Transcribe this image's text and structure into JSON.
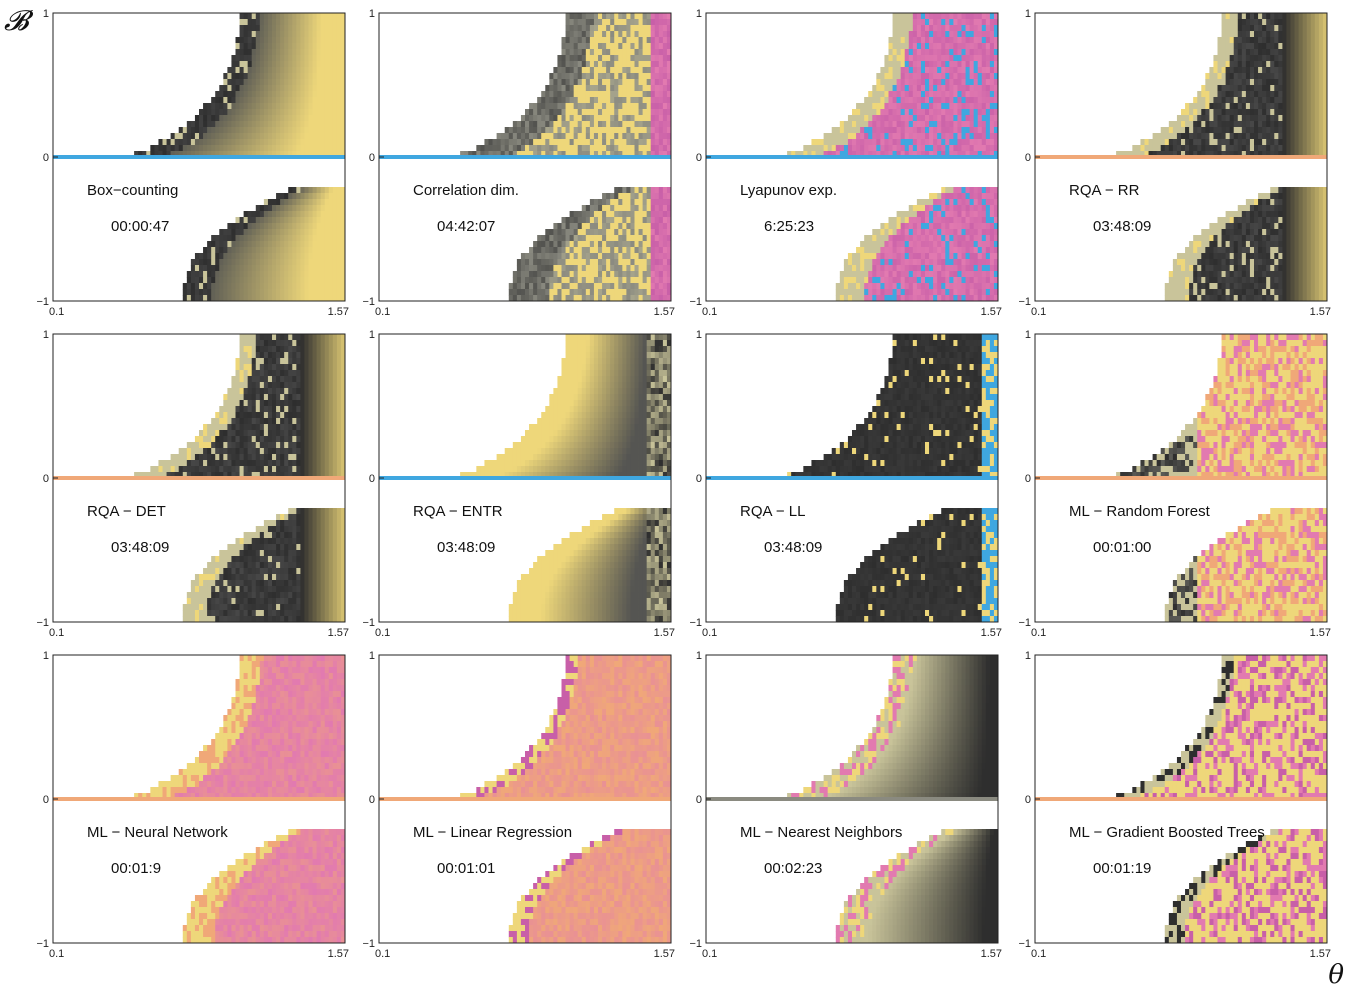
{
  "figure": {
    "y_axis_label": "𝓑",
    "x_axis_label": "θ"
  },
  "palette": {
    "white": "#ffffff",
    "dark": "#2e2e2e",
    "gray": "#8a8a80",
    "khaki": "#c9c49a",
    "yellow": "#eed77a",
    "orange": "#f0a878",
    "pink": "#e27ab0",
    "magenta": "#c85fa8",
    "blue": "#3fa7e0"
  },
  "chart_data": [
    {
      "type": "heatmap",
      "title": "Box−counting",
      "time": "00:00:47",
      "scheme": "yellow-dark",
      "x_tick_labels": [
        "0.1",
        "1.57"
      ],
      "y_tick_labels": [
        "1",
        "0",
        "−1"
      ],
      "xlim": [
        0.1,
        1.57
      ],
      "ylim": [
        -1,
        1
      ],
      "grid": false
    },
    {
      "type": "heatmap",
      "title": "Correlation dim.",
      "time": "04:42:07",
      "scheme": "corr",
      "x_tick_labels": [
        "0.1",
        "1.57"
      ],
      "y_tick_labels": [
        "1",
        "0",
        "−1"
      ],
      "xlim": [
        0.1,
        1.57
      ],
      "ylim": [
        -1,
        1
      ],
      "grid": false
    },
    {
      "type": "heatmap",
      "title": "Lyapunov exp.",
      "time": "6:25:23",
      "scheme": "lyap",
      "x_tick_labels": [
        "0.1",
        "1.57"
      ],
      "y_tick_labels": [
        "1",
        "0",
        "−1"
      ],
      "xlim": [
        0.1,
        1.57
      ],
      "ylim": [
        -1,
        1
      ],
      "grid": false
    },
    {
      "type": "heatmap",
      "title": "RQA − RR",
      "time": "03:48:09",
      "scheme": "rqa",
      "x_tick_labels": [
        "0.1",
        "1.57"
      ],
      "y_tick_labels": [
        "1",
        "0",
        "−1"
      ],
      "xlim": [
        0.1,
        1.57
      ],
      "ylim": [
        -1,
        1
      ],
      "grid": false
    },
    {
      "type": "heatmap",
      "title": "RQA − DET",
      "time": "03:48:09",
      "scheme": "rqa",
      "x_tick_labels": [
        "0.1",
        "1.57"
      ],
      "y_tick_labels": [
        "1",
        "0",
        "−1"
      ],
      "xlim": [
        0.1,
        1.57
      ],
      "ylim": [
        -1,
        1
      ],
      "grid": false
    },
    {
      "type": "heatmap",
      "title": "RQA − ENTR",
      "time": "03:48:09",
      "scheme": "entr",
      "x_tick_labels": [
        "0.1",
        "1.57"
      ],
      "y_tick_labels": [
        "1",
        "0",
        "−1"
      ],
      "xlim": [
        0.1,
        1.57
      ],
      "ylim": [
        -1,
        1
      ],
      "grid": false
    },
    {
      "type": "heatmap",
      "title": "RQA − LL",
      "time": "03:48:09",
      "scheme": "ll",
      "x_tick_labels": [
        "0.1",
        "1.57"
      ],
      "y_tick_labels": [
        "1",
        "0",
        "−1"
      ],
      "xlim": [
        0.1,
        1.57
      ],
      "ylim": [
        -1,
        1
      ],
      "grid": false
    },
    {
      "type": "heatmap",
      "title": "ML − Random Forest",
      "time": "00:01:00",
      "scheme": "rf",
      "x_tick_labels": [
        "0.1",
        "1.57"
      ],
      "y_tick_labels": [
        "1",
        "0",
        "−1"
      ],
      "xlim": [
        0.1,
        1.57
      ],
      "ylim": [
        -1,
        1
      ],
      "grid": false
    },
    {
      "type": "heatmap",
      "title": "ML − Neural Network",
      "time": "00:01:9",
      "scheme": "nn",
      "x_tick_labels": [
        "0.1",
        "1.57"
      ],
      "y_tick_labels": [
        "1",
        "0",
        "−1"
      ],
      "xlim": [
        0.1,
        1.57
      ],
      "ylim": [
        -1,
        1
      ],
      "grid": false
    },
    {
      "type": "heatmap",
      "title": "ML −  Linear Regression",
      "time": "00:01:01",
      "scheme": "lr",
      "x_tick_labels": [
        "0.1",
        "1.57"
      ],
      "y_tick_labels": [
        "1",
        "0",
        "−1"
      ],
      "xlim": [
        0.1,
        1.57
      ],
      "ylim": [
        -1,
        1
      ],
      "grid": false
    },
    {
      "type": "heatmap",
      "title": "ML − Nearest Neighbors",
      "time": "00:02:23",
      "scheme": "knn",
      "x_tick_labels": [
        "0.1",
        "1.57"
      ],
      "y_tick_labels": [
        "1",
        "0",
        "−1"
      ],
      "xlim": [
        0.1,
        1.57
      ],
      "ylim": [
        -1,
        1
      ],
      "grid": false
    },
    {
      "type": "heatmap",
      "title": "ML − Gradient Boosted Trees",
      "time": "00:01:19",
      "scheme": "gbt",
      "x_tick_labels": [
        "0.1",
        "1.57"
      ],
      "y_tick_labels": [
        "1",
        "0",
        "−1"
      ],
      "xlim": [
        0.1,
        1.57
      ],
      "ylim": [
        -1,
        1
      ],
      "grid": false
    }
  ]
}
